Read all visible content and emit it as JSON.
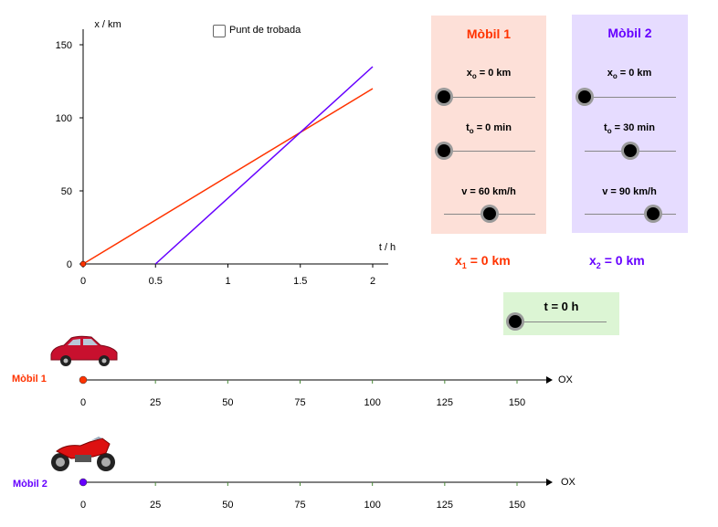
{
  "chart_data": {
    "type": "line",
    "xlabel": "t / h",
    "ylabel": "x / km",
    "xlim": [
      0,
      2.1
    ],
    "ylim": [
      0,
      150
    ],
    "x_ticks": [
      "0",
      "0.5",
      "1",
      "1.5",
      "2"
    ],
    "y_ticks": [
      "0",
      "50",
      "100",
      "150"
    ],
    "series": [
      {
        "color": "#ff3300",
        "x": [
          0,
          2
        ],
        "y": [
          0,
          120
        ]
      },
      {
        "color": "#6600ff",
        "x": [
          0.5,
          2
        ],
        "y": [
          0,
          135
        ]
      }
    ]
  },
  "checkbox": {
    "label": "Punt de trobada",
    "checked": false
  },
  "mobil1": {
    "title": "Mòbil 1",
    "color": "#ff3300",
    "bg": "#fde0d8",
    "sliders": [
      {
        "name": "x",
        "sub": "o",
        "label_suffix": " = 0 km",
        "fraction": 0.0
      },
      {
        "name": "t",
        "sub": "o",
        "label_suffix": " = 0 min",
        "fraction": 0.0
      },
      {
        "name": "v = 60 km/h",
        "sub": "",
        "label_suffix": "",
        "fraction": 0.5
      }
    ],
    "result": {
      "name": "x",
      "sub": "1",
      "value": " = 0 km"
    }
  },
  "mobil2": {
    "title": "Mòbil 2",
    "color": "#6600ff",
    "bg": "#e6dcff",
    "sliders": [
      {
        "name": "x",
        "sub": "o",
        "label_suffix": " = 0 km",
        "fraction": 0.0
      },
      {
        "name": "t",
        "sub": "o",
        "label_suffix": " = 30 min",
        "fraction": 0.5
      },
      {
        "name": "v = 90 km/h",
        "sub": "",
        "label_suffix": "",
        "fraction": 0.75
      }
    ],
    "result": {
      "name": "x",
      "sub": "2",
      "value": " = 0 km"
    }
  },
  "time_slider": {
    "label": "t = 0 h",
    "bg": "#dcf5d4",
    "fraction": 0.0
  },
  "track1": {
    "label": "Mòbil 1",
    "axis": "OX",
    "ticks": [
      "0",
      "25",
      "50",
      "75",
      "100",
      "125",
      "150"
    ],
    "position_km": 0,
    "vehicle": "car-icon"
  },
  "track2": {
    "label": "Mòbil 2",
    "axis": "OX",
    "ticks": [
      "0",
      "25",
      "50",
      "75",
      "100",
      "125",
      "150"
    ],
    "position_km": 0,
    "vehicle": "motorcycle-icon"
  }
}
